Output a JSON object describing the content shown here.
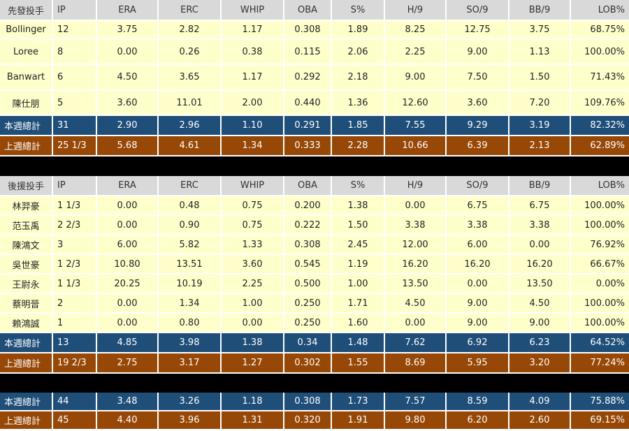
{
  "sections": [
    {
      "header": [
        "先發投手",
        "IP",
        "ERA",
        "ERC",
        "WHIP",
        "OBA",
        "S%",
        "H/9",
        "SO/9",
        "BB/9",
        "LOB%"
      ],
      "rows": [
        [
          "Bollinger",
          "12",
          "3.75",
          "2.82",
          "1.17",
          "0.308",
          "1.89",
          "8.25",
          "12.75",
          "3.75",
          "68.75%"
        ],
        [
          "Loree",
          "8",
          "0.00",
          "0.26",
          "0.38",
          "0.115",
          "2.06",
          "2.25",
          "9.00",
          "1.13",
          "100.00%"
        ],
        [
          "Banwart",
          "6",
          "4.50",
          "3.65",
          "1.17",
          "0.292",
          "2.18",
          "9.00",
          "7.50",
          "1.50",
          "71.43%"
        ],
        [
          "陳仕朋",
          "5",
          "3.60",
          "11.01",
          "2.00",
          "0.440",
          "1.36",
          "12.60",
          "3.60",
          "7.20",
          "109.76%"
        ]
      ],
      "this_week": [
        "本週總計",
        "31",
        "2.90",
        "2.96",
        "1.10",
        "0.291",
        "1.85",
        "7.55",
        "9.29",
        "3.19",
        "82.32%"
      ],
      "last_week": [
        "上週總計",
        "25 1/3",
        "5.68",
        "4.61",
        "1.34",
        "0.333",
        "2.28",
        "10.66",
        "6.39",
        "2.13",
        "62.89%"
      ]
    },
    {
      "header": [
        "後援投手",
        "IP",
        "ERA",
        "ERC",
        "WHIP",
        "OBA",
        "S%",
        "H/9",
        "SO/9",
        "BB/9",
        "LOB%"
      ],
      "rows": [
        [
          "林羿豪",
          "1 1/3",
          "0.00",
          "0.48",
          "0.75",
          "0.200",
          "1.38",
          "0.00",
          "6.75",
          "6.75",
          "100.00%"
        ],
        [
          "范玉禹",
          "2 2/3",
          "0.00",
          "0.90",
          "0.75",
          "0.222",
          "1.50",
          "3.38",
          "3.38",
          "3.38",
          "100.00%"
        ],
        [
          "陳鴻文",
          "3",
          "6.00",
          "5.82",
          "1.33",
          "0.308",
          "2.45",
          "12.00",
          "6.00",
          "0.00",
          "76.92%"
        ],
        [
          "吳世豪",
          "1 2/3",
          "10.80",
          "13.51",
          "3.60",
          "0.545",
          "1.19",
          "16.20",
          "16.20",
          "16.20",
          "66.67%"
        ],
        [
          "王尉永",
          "1 1/3",
          "20.25",
          "10.19",
          "2.25",
          "0.500",
          "1.00",
          "13.50",
          "0.00",
          "13.50",
          "0.00%"
        ],
        [
          "蔡明晉",
          "2",
          "0.00",
          "1.34",
          "1.00",
          "0.250",
          "1.71",
          "4.50",
          "9.00",
          "4.50",
          "100.00%"
        ],
        [
          "賴鴻誠",
          "1",
          "0.00",
          "0.80",
          "0.00",
          "0.250",
          "1.60",
          "0.00",
          "9.00",
          "9.00",
          "100.00%"
        ]
      ],
      "this_week": [
        "本週總計",
        "13",
        "4.85",
        "3.98",
        "1.38",
        "0.34",
        "1.48",
        "7.62",
        "6.92",
        "6.23",
        "64.52%"
      ],
      "last_week": [
        "上週總計",
        "19 2/3",
        "2.75",
        "3.17",
        "1.27",
        "0.302",
        "1.55",
        "8.69",
        "5.95",
        "3.20",
        "77.24%"
      ]
    }
  ],
  "totals": {
    "this_week": [
      "本週總計",
      "44",
      "3.48",
      "3.26",
      "1.18",
      "0.308",
      "1.73",
      "7.57",
      "8.59",
      "4.09",
      "75.88%"
    ],
    "last_week": [
      "上週總計",
      "45",
      "4.40",
      "3.96",
      "1.31",
      "0.320",
      "1.91",
      "9.80",
      "6.20",
      "2.60",
      "69.15%"
    ]
  }
}
